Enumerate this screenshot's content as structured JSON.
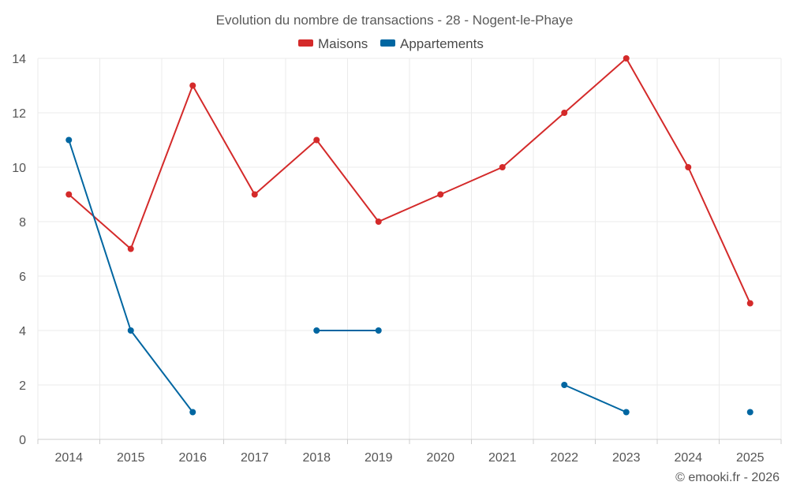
{
  "chart_data": {
    "type": "line",
    "title": "Evolution du nombre de transactions - 28 - Nogent-le-Phaye",
    "categories": [
      "2014",
      "2015",
      "2016",
      "2017",
      "2018",
      "2019",
      "2020",
      "2021",
      "2022",
      "2023",
      "2024",
      "2025"
    ],
    "ylim": [
      0,
      14
    ],
    "yticks": [
      0,
      2,
      4,
      6,
      8,
      10,
      12,
      14
    ],
    "grid": true,
    "legend_position": "top-center",
    "series": [
      {
        "name": "Maisons",
        "color": "#d42a2a",
        "values": [
          9,
          7,
          13,
          9,
          11,
          8,
          9,
          10,
          12,
          14,
          10,
          5
        ]
      },
      {
        "name": "Appartements",
        "color": "#0066a1",
        "values": [
          11,
          4,
          1,
          null,
          4,
          4,
          null,
          null,
          2,
          1,
          null,
          1
        ]
      }
    ],
    "credit": "© emooki.fr - 2026"
  }
}
